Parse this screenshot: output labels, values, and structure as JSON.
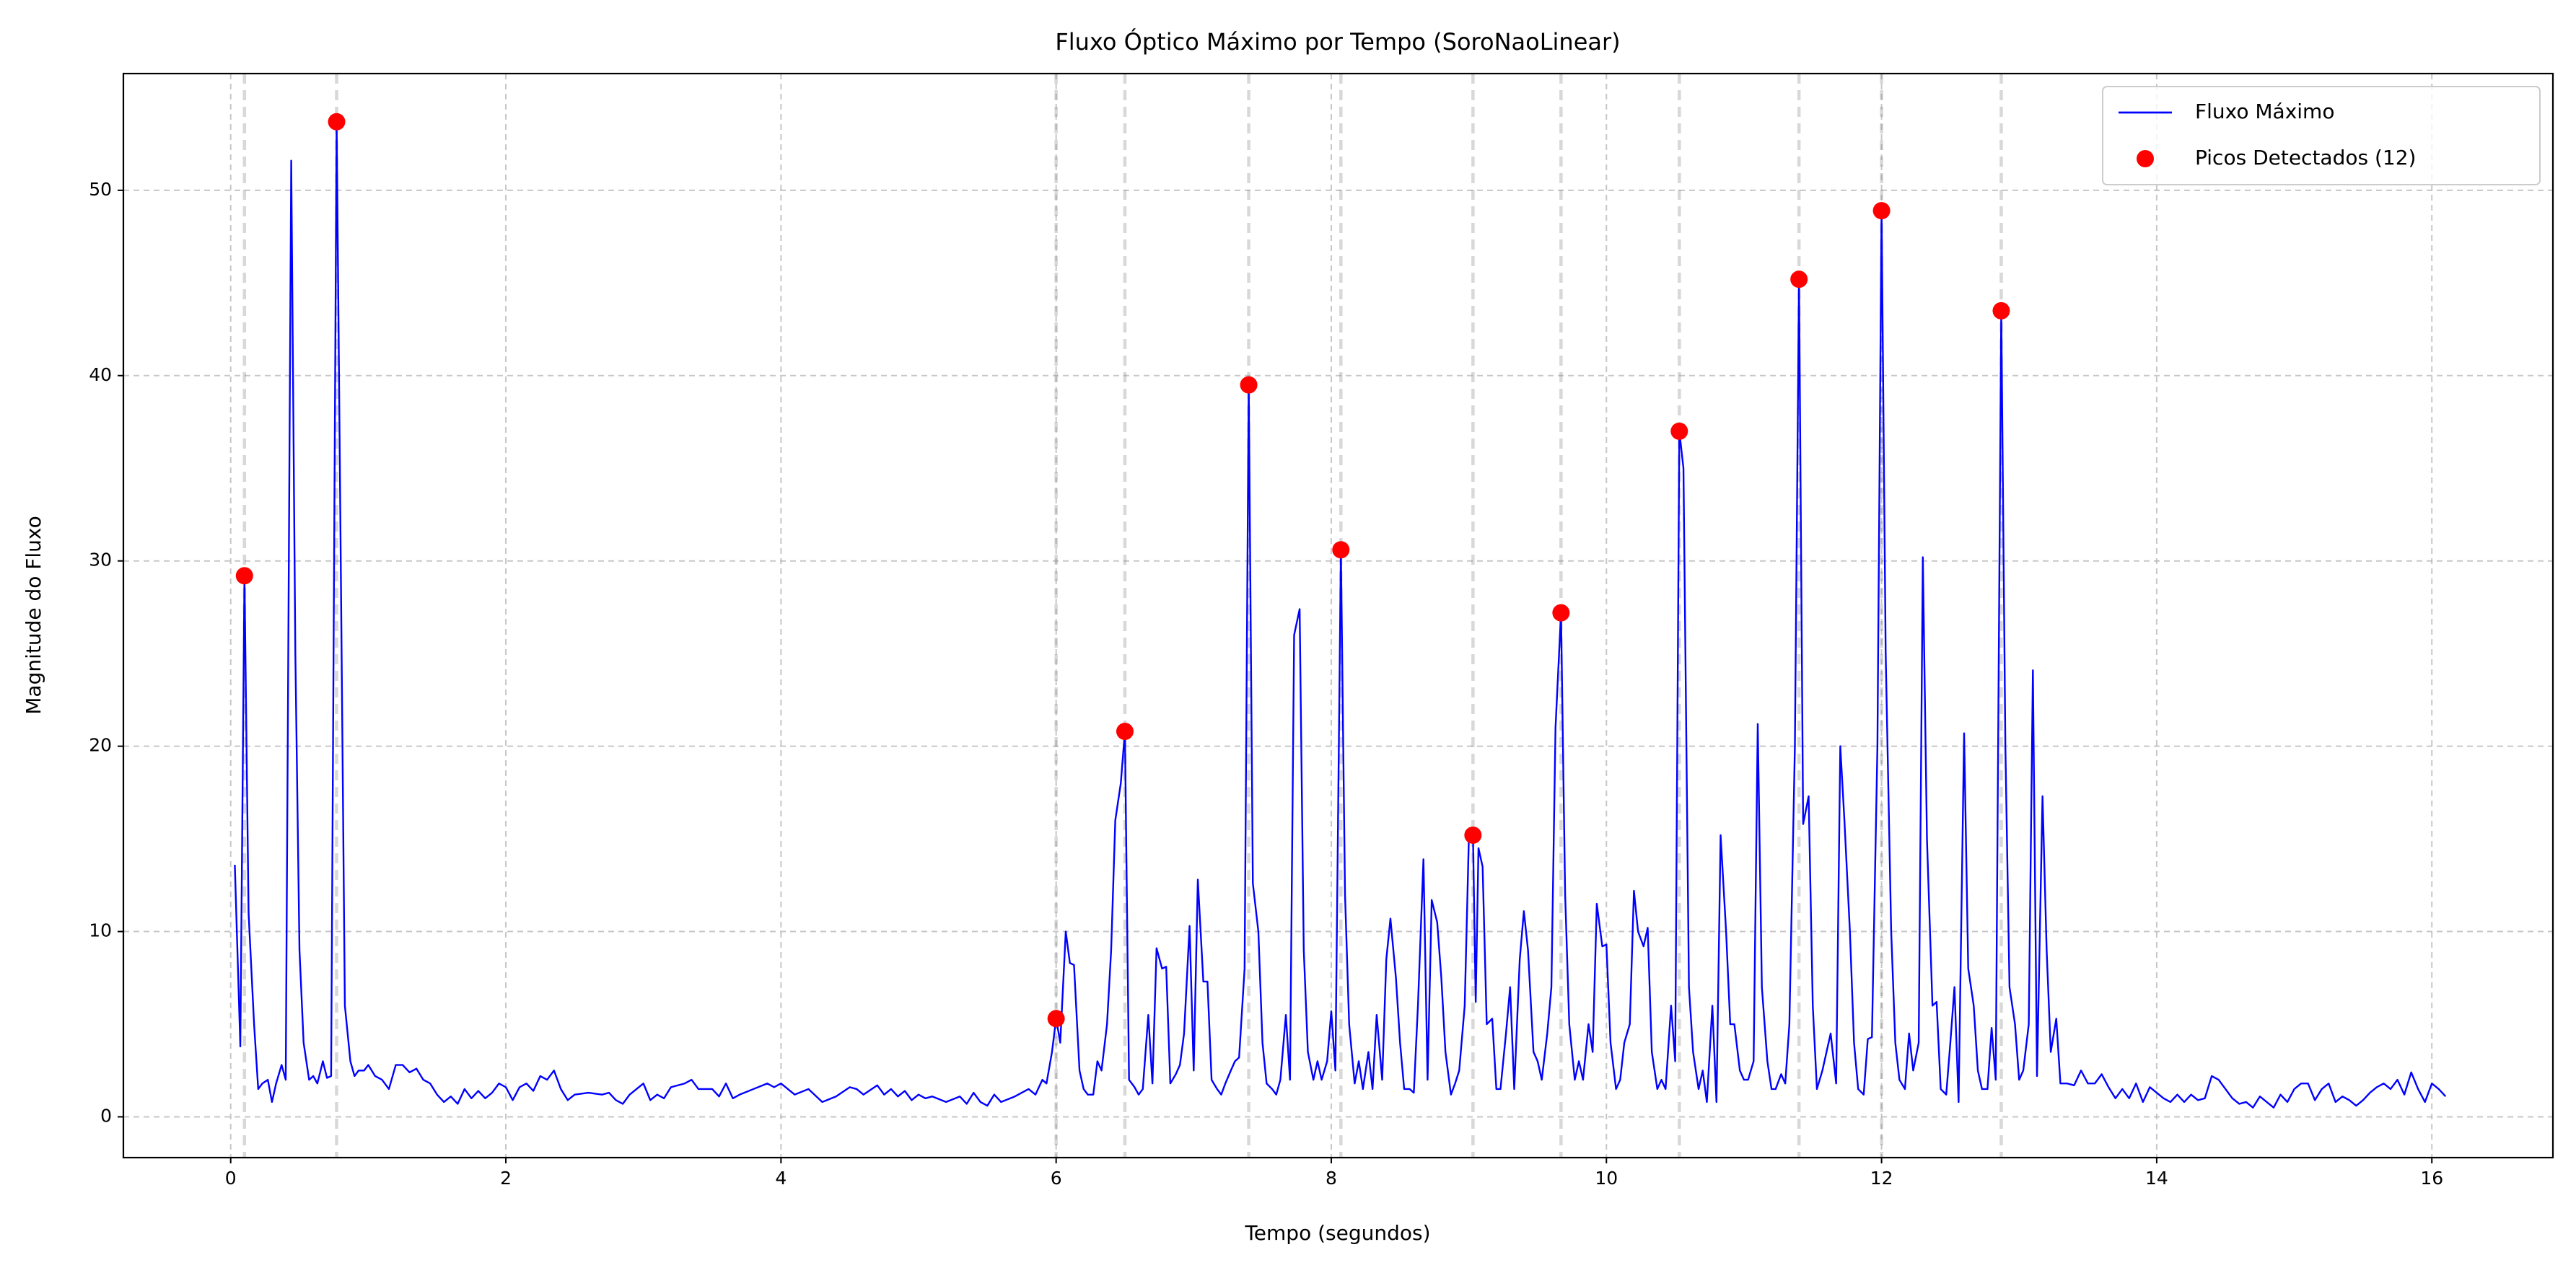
{
  "chart_data": {
    "type": "line",
    "title": "Fluxo Óptico Máximo por Tempo (SoroNaoLinear)",
    "x_label": "Tempo (segundos)",
    "y_label": "Magnitude do Fluxo",
    "xlim": [
      -0.78,
      16.88
    ],
    "ylim": [
      -2.2,
      56.3
    ],
    "xticks": [
      0,
      2,
      4,
      6,
      8,
      10,
      12,
      14,
      16
    ],
    "yticks": [
      0,
      10,
      20,
      30,
      40,
      50
    ],
    "grid": true,
    "legend": "upper right",
    "series": [
      {
        "name": "Fluxo Máximo",
        "color": "#0000ff",
        "style": "line",
        "x": [
          0.03,
          0.07,
          0.1,
          0.13,
          0.17,
          0.2,
          0.23,
          0.27,
          0.3,
          0.33,
          0.37,
          0.4,
          0.44,
          0.47,
          0.5,
          0.53,
          0.57,
          0.6,
          0.63,
          0.67,
          0.7,
          0.73,
          0.77,
          0.8,
          0.83,
          0.87,
          0.9,
          0.93,
          0.97,
          1.0,
          1.05,
          1.1,
          1.15,
          1.2,
          1.25,
          1.3,
          1.35,
          1.4,
          1.45,
          1.5,
          1.55,
          1.6,
          1.65,
          1.7,
          1.75,
          1.8,
          1.85,
          1.9,
          1.95,
          2.0,
          2.05,
          2.1,
          2.15,
          2.2,
          2.25,
          2.3,
          2.35,
          2.4,
          2.45,
          2.5,
          2.6,
          2.7,
          2.75,
          2.8,
          2.85,
          2.9,
          3.0,
          3.05,
          3.1,
          3.15,
          3.2,
          3.3,
          3.35,
          3.4,
          3.5,
          3.55,
          3.6,
          3.65,
          3.7,
          3.8,
          3.9,
          3.95,
          4.0,
          4.05,
          4.1,
          4.2,
          4.3,
          4.4,
          4.5,
          4.55,
          4.6,
          4.7,
          4.75,
          4.8,
          4.85,
          4.9,
          4.95,
          5.0,
          5.05,
          5.1,
          5.2,
          5.3,
          5.35,
          5.4,
          5.45,
          5.5,
          5.55,
          5.6,
          5.7,
          5.8,
          5.85,
          5.9,
          5.93,
          5.97,
          6.0,
          6.03,
          6.07,
          6.1,
          6.13,
          6.17,
          6.2,
          6.23,
          6.27,
          6.3,
          6.33,
          6.37,
          6.4,
          6.43,
          6.47,
          6.5,
          6.53,
          6.57,
          6.6,
          6.63,
          6.67,
          6.7,
          6.73,
          6.77,
          6.8,
          6.83,
          6.87,
          6.9,
          6.93,
          6.97,
          7.0,
          7.03,
          7.07,
          7.1,
          7.13,
          7.17,
          7.2,
          7.23,
          7.27,
          7.3,
          7.33,
          7.37,
          7.4,
          7.43,
          7.47,
          7.5,
          7.53,
          7.57,
          7.6,
          7.63,
          7.67,
          7.7,
          7.73,
          7.77,
          7.8,
          7.83,
          7.87,
          7.9,
          7.93,
          7.97,
          8.0,
          8.03,
          8.07,
          8.1,
          8.13,
          8.17,
          8.2,
          8.23,
          8.27,
          8.3,
          8.33,
          8.37,
          8.4,
          8.43,
          8.47,
          8.5,
          8.53,
          8.57,
          8.6,
          8.63,
          8.67,
          8.7,
          8.73,
          8.77,
          8.8,
          8.83,
          8.87,
          8.9,
          8.93,
          8.97,
          9.0,
          9.03,
          9.05,
          9.07,
          9.1,
          9.13,
          9.17,
          9.2,
          9.23,
          9.27,
          9.3,
          9.33,
          9.37,
          9.4,
          9.43,
          9.47,
          9.5,
          9.53,
          9.57,
          9.6,
          9.63,
          9.67,
          9.7,
          9.73,
          9.77,
          9.8,
          9.83,
          9.87,
          9.9,
          9.93,
          9.97,
          10.0,
          10.03,
          10.07,
          10.1,
          10.13,
          10.17,
          10.2,
          10.23,
          10.27,
          10.3,
          10.33,
          10.37,
          10.4,
          10.43,
          10.47,
          10.5,
          10.53,
          10.56,
          10.6,
          10.63,
          10.67,
          10.7,
          10.73,
          10.77,
          10.8,
          10.83,
          10.87,
          10.9,
          10.93,
          10.97,
          11.0,
          11.03,
          11.07,
          11.1,
          11.13,
          11.17,
          11.2,
          11.23,
          11.27,
          11.3,
          11.33,
          11.37,
          11.4,
          11.43,
          11.47,
          11.5,
          11.53,
          11.57,
          11.6,
          11.63,
          11.67,
          11.7,
          11.73,
          11.77,
          11.8,
          11.83,
          11.87,
          11.9,
          11.93,
          11.97,
          12.0,
          12.03,
          12.07,
          12.1,
          12.13,
          12.17,
          12.2,
          12.23,
          12.27,
          12.3,
          12.33,
          12.37,
          12.4,
          12.43,
          12.47,
          12.5,
          12.53,
          12.56,
          12.6,
          12.63,
          12.67,
          12.7,
          12.73,
          12.77,
          12.8,
          12.83,
          12.87,
          12.9,
          12.93,
          12.97,
          13.0,
          13.03,
          13.07,
          13.1,
          13.13,
          13.17,
          13.2,
          13.23,
          13.27,
          13.3,
          13.35,
          13.4,
          13.45,
          13.5,
          13.55,
          13.6,
          13.65,
          13.7,
          13.75,
          13.8,
          13.85,
          13.9,
          13.95,
          14.0,
          14.05,
          14.1,
          14.15,
          14.2,
          14.25,
          14.3,
          14.35,
          14.4,
          14.45,
          14.5,
          14.55,
          14.6,
          14.65,
          14.7,
          14.75,
          14.8,
          14.85,
          14.9,
          14.95,
          15.0,
          15.05,
          15.1,
          15.15,
          15.2,
          15.25,
          15.3,
          15.35,
          15.4,
          15.45,
          15.5,
          15.55,
          15.6,
          15.65,
          15.7,
          15.75,
          15.8,
          15.85,
          15.9,
          15.95,
          16.0,
          16.05,
          16.1
        ],
        "values": [
          13.6,
          3.8,
          29.2,
          11,
          5,
          1.5,
          1.8,
          2.0,
          0.8,
          1.8,
          2.8,
          2.0,
          51.6,
          25,
          9,
          4,
          2.0,
          2.2,
          1.8,
          3.0,
          2.1,
          2.2,
          53.7,
          30,
          6,
          3,
          2.2,
          2.5,
          2.5,
          2.8,
          2.2,
          2.0,
          1.5,
          2.8,
          2.8,
          2.4,
          2.6,
          2.0,
          1.8,
          1.2,
          0.8,
          1.1,
          0.7,
          1.5,
          1.0,
          1.4,
          1.0,
          1.3,
          1.8,
          1.6,
          0.9,
          1.6,
          1.8,
          1.4,
          2.2,
          2.0,
          2.5,
          1.5,
          0.9,
          1.2,
          1.3,
          1.2,
          1.3,
          0.9,
          0.7,
          1.2,
          1.8,
          0.9,
          1.2,
          1.0,
          1.6,
          1.8,
          2.0,
          1.5,
          1.5,
          1.1,
          1.8,
          1.0,
          1.2,
          1.5,
          1.8,
          1.6,
          1.8,
          1.5,
          1.2,
          1.5,
          0.8,
          1.1,
          1.6,
          1.5,
          1.2,
          1.7,
          1.2,
          1.5,
          1.1,
          1.4,
          0.9,
          1.2,
          1.0,
          1.1,
          0.8,
          1.1,
          0.7,
          1.3,
          0.8,
          0.6,
          1.2,
          0.8,
          1.1,
          1.5,
          1.2,
          2.0,
          1.8,
          3.5,
          5.3,
          4.0,
          10.0,
          8.3,
          8.2,
          2.5,
          1.5,
          1.2,
          1.2,
          3.0,
          2.5,
          5.0,
          9.0,
          16,
          18,
          20.8,
          2.0,
          1.6,
          1.2,
          1.5,
          5.5,
          1.8,
          9.1,
          8.0,
          8.1,
          1.8,
          2.3,
          2.8,
          4.5,
          10.3,
          2.5,
          12.8,
          7.3,
          7.3,
          2.0,
          1.5,
          1.2,
          1.8,
          2.5,
          3.0,
          3.2,
          8,
          39.5,
          12.6,
          10,
          4,
          1.8,
          1.5,
          1.2,
          2.0,
          5.5,
          2.0,
          26,
          27.4,
          9,
          3.5,
          2.0,
          3.0,
          2.0,
          3.0,
          5.7,
          2.5,
          30.6,
          12,
          5,
          1.8,
          3.0,
          1.5,
          3.5,
          1.5,
          5.5,
          2.0,
          8.5,
          10.7,
          7.5,
          4.0,
          1.5,
          1.5,
          1.3,
          6.0,
          13.9,
          2.0,
          11.7,
          10.5,
          7.5,
          3.5,
          1.2,
          1.8,
          2.5,
          6.0,
          15.0,
          15.2,
          6.2,
          14.5,
          13.5,
          5.0,
          5.3,
          1.5,
          1.5,
          4.5,
          7.0,
          1.5,
          8.5,
          11.1,
          9.0,
          3.5,
          3.0,
          2.0,
          4.5,
          7.0,
          21,
          27.2,
          12,
          5.0,
          2.0,
          3.0,
          2.0,
          5.0,
          3.5,
          11.5,
          9.2,
          9.3,
          4.0,
          1.5,
          2.0,
          4.0,
          5.0,
          12.2,
          10.0,
          9.2,
          10.2,
          3.5,
          1.5,
          2.0,
          1.5,
          6.0,
          3.0,
          37.0,
          35,
          7.0,
          3.5,
          1.5,
          2.5,
          0.8,
          6.0,
          0.8,
          15.2,
          10.0,
          5.0,
          5.0,
          2.5,
          2.0,
          2.0,
          3.0,
          21.2,
          7.0,
          3.0,
          1.5,
          1.5,
          2.3,
          1.8,
          5.0,
          20,
          45.2,
          15.8,
          17.3,
          6.0,
          1.5,
          2.5,
          3.5,
          4.5,
          1.8,
          20.0,
          16,
          10,
          4,
          1.5,
          1.2,
          4.2,
          4.3,
          20,
          48.9,
          25,
          10,
          4.0,
          2.0,
          1.5,
          4.5,
          2.5,
          4.0,
          30.2,
          15,
          6.0,
          6.2,
          1.5,
          1.2,
          4.0,
          7.0,
          0.8,
          20.7,
          8.0,
          6.0,
          2.5,
          1.5,
          1.5,
          4.8,
          2.0,
          43.5,
          20,
          7.0,
          5.0,
          2.0,
          2.5,
          5.0,
          24.1,
          2.2,
          17.3,
          9,
          3.5,
          5.3,
          1.8,
          1.8,
          1.7,
          2.5,
          1.8,
          1.8,
          2.3,
          1.6,
          1.0,
          1.5,
          1.0,
          1.8,
          0.8,
          1.6,
          1.3,
          1.0,
          0.8,
          1.2,
          0.8,
          1.2,
          0.9,
          1.0,
          2.2,
          2.0,
          1.5,
          1.0,
          0.7,
          0.8,
          0.5,
          1.1,
          0.8,
          0.5,
          1.2,
          0.8,
          1.5,
          1.8,
          1.8,
          0.9,
          1.5,
          1.8,
          0.8,
          1.1,
          0.9,
          0.6,
          0.9,
          1.3,
          1.6,
          1.8,
          1.5,
          2.0,
          1.2,
          2.4,
          1.5,
          0.8,
          1.8,
          1.5,
          1.1
        ]
      },
      {
        "name": "Picos Detectados (12)",
        "color": "#ff0000",
        "style": "marker",
        "x": [
          0.1,
          0.77,
          6.0,
          6.5,
          7.4,
          8.07,
          9.03,
          9.67,
          10.53,
          11.4,
          12.0,
          12.87
        ],
        "values": [
          29.2,
          53.7,
          5.3,
          20.8,
          39.5,
          30.6,
          15.2,
          27.2,
          37.0,
          45.2,
          48.9,
          43.5
        ]
      }
    ]
  }
}
